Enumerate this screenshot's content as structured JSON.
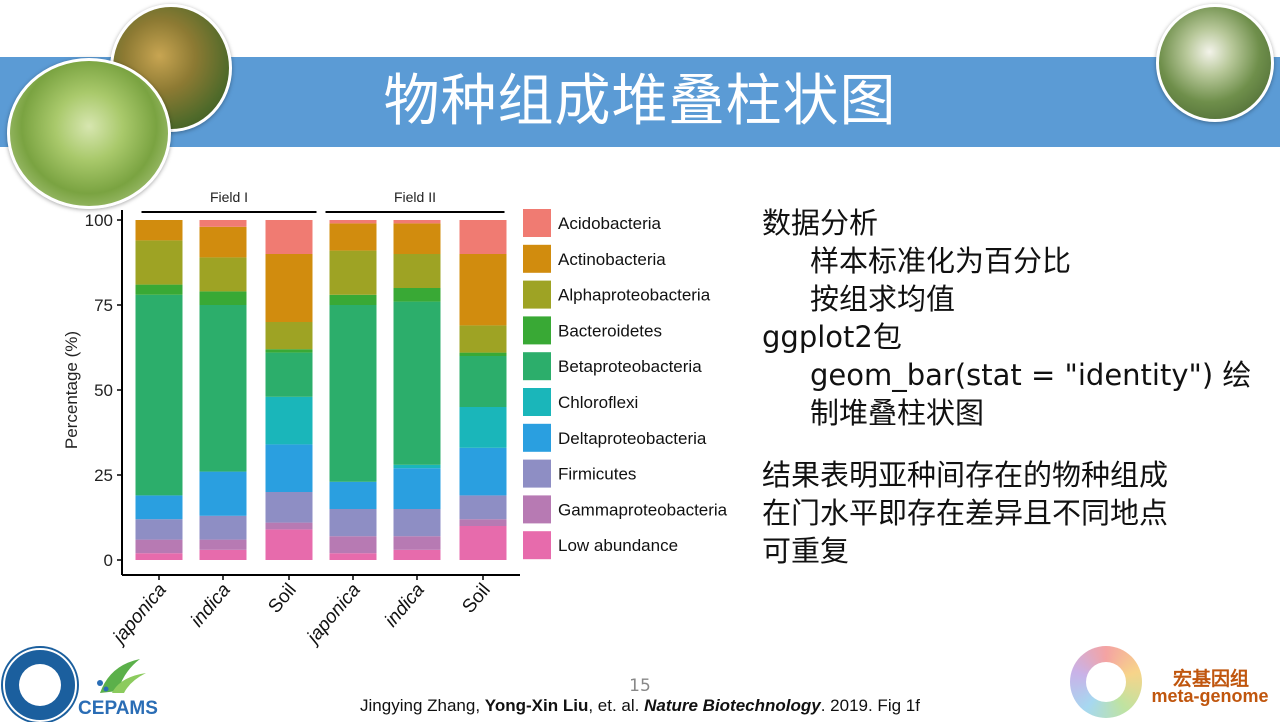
{
  "slide": {
    "title": "物种组成堆叠柱状图",
    "page_number": "15",
    "citation": {
      "authors_prefix": "Jingying Zhang, ",
      "author_bold": "Yong-Xin Liu",
      "etal": ", et. al. ",
      "journal": "Nature Biotechnology",
      "suffix": ". 2019. Fig 1f"
    },
    "logos": {
      "cepams_text": "CEPAMS",
      "metagenome_cn": "宏基因组",
      "metagenome_en": "meta-genome"
    },
    "colors": {
      "banner": "#5b9bd5",
      "accent_orange": "#c0560e"
    }
  },
  "notes": {
    "line1": "数据分析",
    "line2": "样本标准化为百分比",
    "line3": "按组求均值",
    "line4": "ggplot2包",
    "line5": "geom_bar(stat = \"identity\") 绘",
    "line6": "制堆叠柱状图",
    "line7": "结果表明亚种间存在的物种组成",
    "line8": "在门水平即存在差异且不同地点",
    "line9": "可重复"
  },
  "chart_data": {
    "type": "bar",
    "stacked": true,
    "ylabel": "Percentage (%)",
    "ylim": [
      0,
      100
    ],
    "yticks": [
      0,
      25,
      50,
      75,
      100
    ],
    "facets": [
      "Field I",
      "Field II"
    ],
    "categories": [
      "japonica",
      "indica",
      "Soil",
      "japonica",
      "indica",
      "Soil"
    ],
    "facet_index": [
      0,
      0,
      0,
      1,
      1,
      1
    ],
    "series": [
      {
        "name": "Low abundance",
        "color": "#e76bac",
        "values": [
          2,
          3,
          9,
          2,
          3,
          10
        ]
      },
      {
        "name": "Gammaproteobacteria",
        "color": "#b77ab3",
        "values": [
          4,
          3,
          2,
          5,
          4,
          2
        ]
      },
      {
        "name": "Firmicutes",
        "color": "#8e8ec4",
        "values": [
          6,
          7,
          9,
          8,
          8,
          7
        ]
      },
      {
        "name": "Deltaproteobacteria",
        "color": "#2a9fe0",
        "values": [
          7,
          13,
          14,
          8,
          12,
          14
        ]
      },
      {
        "name": "Chloroflexi",
        "color": "#1ab6ba",
        "values": [
          0,
          0,
          14,
          0,
          1,
          12
        ]
      },
      {
        "name": "Betaproteobacteria",
        "color": "#2cae6b",
        "values": [
          59,
          49,
          13,
          52,
          48,
          15
        ]
      },
      {
        "name": "Bacteroidetes",
        "color": "#39a935",
        "values": [
          3,
          4,
          1,
          3,
          4,
          1
        ]
      },
      {
        "name": "Alphaproteobacteria",
        "color": "#9ea324",
        "values": [
          13,
          10,
          8,
          13,
          10,
          8
        ]
      },
      {
        "name": "Actinobacteria",
        "color": "#d18c0e",
        "values": [
          6,
          9,
          20,
          8,
          9,
          21
        ]
      },
      {
        "name": "Acidobacteria",
        "color": "#f07b72",
        "values": [
          0,
          2,
          10,
          1,
          1,
          10
        ]
      }
    ],
    "legend_order": [
      "Acidobacteria",
      "Actinobacteria",
      "Alphaproteobacteria",
      "Bacteroidetes",
      "Betaproteobacteria",
      "Chloroflexi",
      "Deltaproteobacteria",
      "Firmicutes",
      "Gammaproteobacteria",
      "Low abundance"
    ],
    "grid": false,
    "legend_position": "right"
  }
}
